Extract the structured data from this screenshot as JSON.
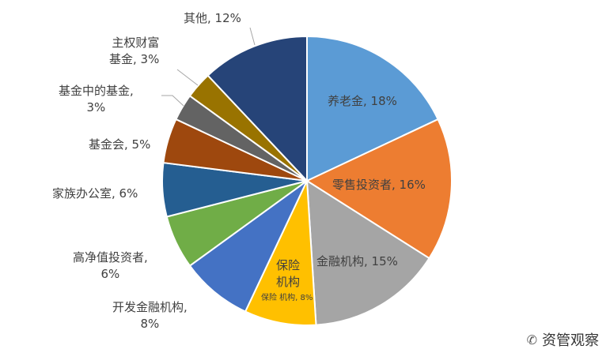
{
  "chart_data": {
    "type": "pie",
    "title": "",
    "start_angle": "top",
    "direction": "clockwise",
    "slices": [
      {
        "label": "养老金",
        "value": 18,
        "display": "养老金, 18%",
        "color": "#5B9BD5"
      },
      {
        "label": "零售投资者",
        "value": 16,
        "display": "零售投资者, 16%",
        "color": "#ED7D31"
      },
      {
        "label": "金融机构",
        "value": 15,
        "display": "金融机构, 15%",
        "color": "#A5A5A5"
      },
      {
        "label": "保险机构",
        "value": 8,
        "display": "保险\n机构,\n8%",
        "color": "#FFC000"
      },
      {
        "label": "开发金融机构",
        "value": 8,
        "display": "开发金融机构,\n8%",
        "color": "#4472C4"
      },
      {
        "label": "高净值投资者",
        "value": 6,
        "display": "高净值投资者,\n6%",
        "color": "#70AD47"
      },
      {
        "label": "家族办公室",
        "value": 6,
        "display": "家族办公室, 6%",
        "color": "#255E91"
      },
      {
        "label": "基金会",
        "value": 5,
        "display": "基金会, 5%",
        "color": "#9E480E"
      },
      {
        "label": "基金中的基金",
        "value": 3,
        "display": "基金中的基金,\n3%",
        "color": "#636363"
      },
      {
        "label": "主权财富基金",
        "value": 3,
        "display": "主权财富\n基金, 3%",
        "color": "#997300"
      },
      {
        "label": "其他",
        "value": 12,
        "display": "其他, 12%",
        "color": "#264478"
      }
    ]
  },
  "watermark": {
    "text": "资管观察",
    "icon": "wechat-icon"
  }
}
